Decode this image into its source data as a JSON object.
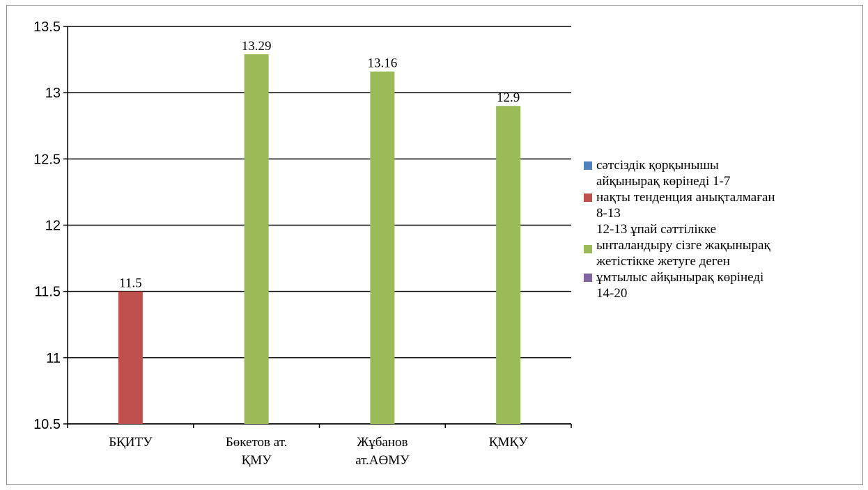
{
  "chart_data": {
    "type": "bar",
    "categories": [
      "БҚИТУ",
      "Бөкетов ат. ҚМУ",
      "Жұбанов ат.АӨМУ",
      "ҚМҚУ"
    ],
    "category_lines": [
      [
        "БҚИТУ"
      ],
      [
        "Бөкетов ат.",
        "ҚМУ"
      ],
      [
        "Жұбанов",
        "ат.АӨМУ"
      ],
      [
        "ҚМҚУ"
      ]
    ],
    "series": [
      {
        "name": "сәтсіздік қорқынышы айқынырақ көрінеді 1-7",
        "color": "#4f81bd",
        "values": [
          null,
          null,
          null,
          null
        ]
      },
      {
        "name": "нақты тенденция анықталмаған 8-13",
        "color": "#c0504d",
        "values": [
          11.5,
          null,
          null,
          null
        ]
      },
      {
        "name": "12-13 ұпай сәттілікке ынталандыру сізге жақынырақ жетістікке жетуге деген ұмтылыс айқынырақ көрінеді 14-20",
        "color": "#9bbb59",
        "values": [
          null,
          13.29,
          13.16,
          12.9
        ]
      },
      {
        "name": "",
        "color": "#8064a2",
        "values": [
          null,
          null,
          null,
          null
        ]
      }
    ],
    "data_labels": [
      "11.5",
      "13.29",
      "13.16",
      "12.9"
    ],
    "y_ticks": [
      "10.5",
      "11",
      "11.5",
      "12",
      "12.5",
      "13",
      "13.5"
    ],
    "ylim": [
      10.5,
      13.5
    ],
    "grid": true,
    "legend_position": "right",
    "title": "",
    "xlabel": "",
    "ylabel": ""
  },
  "legend": [
    {
      "color": "#4f81bd",
      "lines": [
        "сәтсіздік қорқынышы",
        "айқынырақ көрінеді 1-7"
      ]
    },
    {
      "color": "#c0504d",
      "lines": [
        "нақты тенденция анықталмаған",
        "8-13"
      ]
    },
    {
      "color": "#9bbb59",
      "lines": [
        "12-13 ұпай сәттілікке",
        "ынталандыру сізге жақынырақ",
        "жетістікке жетуге деген"
      ]
    },
    {
      "color": "#8064a2",
      "lines": [
        "ұмтылыс айқынырақ көрінеді",
        "14-20"
      ]
    }
  ]
}
